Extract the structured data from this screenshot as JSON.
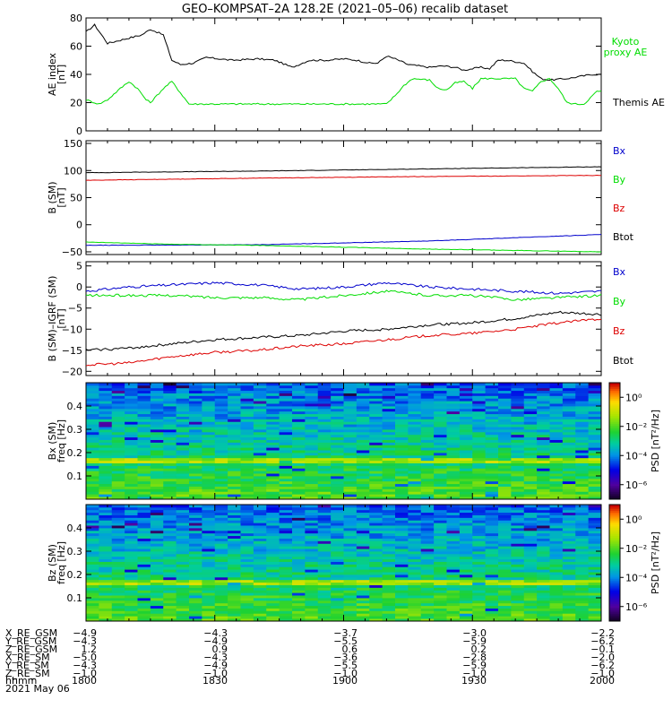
{
  "title": "GEO–KOMPSAT–2A 128.2E (2021–05–06) recalib dataset",
  "colors": {
    "black": "#000000",
    "green": "#00dd00",
    "red": "#dd0000",
    "blue": "#0000cc"
  },
  "chart_data": [
    {
      "type": "line",
      "ylabel": "AE index\n[nT]",
      "ylim": [
        0,
        80
      ],
      "yticks": [
        "0",
        "20",
        "40",
        "60",
        "80"
      ],
      "x_range": [
        "18:00",
        "20:00"
      ],
      "legend_placement": "right",
      "legend": [
        "Kyoto\nproxy AE",
        "Themis AE"
      ],
      "series": [
        {
          "name": "Themis AE",
          "color": "#000000",
          "points": [
            [
              0,
              70
            ],
            [
              2,
              75
            ],
            [
              5,
              62
            ],
            [
              9,
              65
            ],
            [
              13,
              68
            ],
            [
              15,
              72
            ],
            [
              18,
              68
            ],
            [
              20,
              50
            ],
            [
              22,
              47
            ],
            [
              25,
              48
            ],
            [
              28,
              52
            ],
            [
              34,
              50
            ],
            [
              40,
              51
            ],
            [
              44,
              50
            ],
            [
              48,
              45
            ],
            [
              52,
              50
            ],
            [
              56,
              50
            ],
            [
              60,
              51
            ],
            [
              63,
              50
            ],
            [
              66,
              48
            ],
            [
              68,
              48
            ],
            [
              70,
              53
            ],
            [
              72,
              51
            ],
            [
              75,
              47
            ],
            [
              80,
              45
            ],
            [
              83,
              46
            ],
            [
              86,
              45
            ],
            [
              88,
              43
            ],
            [
              90,
              44
            ],
            [
              92,
              45
            ],
            [
              94,
              44
            ],
            [
              96,
              50
            ],
            [
              98,
              50
            ],
            [
              100,
              49
            ],
            [
              102,
              48
            ],
            [
              104,
              42
            ],
            [
              106,
              37
            ],
            [
              108,
              36
            ],
            [
              112,
              37
            ],
            [
              116,
              39
            ],
            [
              118,
              40
            ],
            [
              120,
              40
            ]
          ]
        },
        {
          "name": "Kyoto proxy AE",
          "color": "#00dd00",
          "points": [
            [
              0,
              22
            ],
            [
              3,
              19
            ],
            [
              5,
              22
            ],
            [
              8,
              30
            ],
            [
              10,
              35
            ],
            [
              12,
              30
            ],
            [
              14,
              22
            ],
            [
              15,
              20
            ],
            [
              18,
              30
            ],
            [
              20,
              35
            ],
            [
              22,
              27
            ],
            [
              24,
              19
            ],
            [
              50,
              19
            ],
            [
              70,
              19
            ],
            [
              72,
              25
            ],
            [
              74,
              32
            ],
            [
              76,
              37
            ],
            [
              80,
              36
            ],
            [
              82,
              30
            ],
            [
              84,
              29
            ],
            [
              86,
              34
            ],
            [
              88,
              35
            ],
            [
              90,
              30
            ],
            [
              92,
              37
            ],
            [
              94,
              37
            ],
            [
              100,
              37
            ],
            [
              102,
              30
            ],
            [
              104,
              28
            ],
            [
              106,
              35
            ],
            [
              108,
              37
            ],
            [
              110,
              30
            ],
            [
              112,
              20
            ],
            [
              114,
              19
            ],
            [
              116,
              19
            ],
            [
              118,
              25
            ],
            [
              119,
              28
            ],
            [
              120,
              28
            ]
          ]
        }
      ]
    },
    {
      "type": "line",
      "ylabel": "B (SM)\n[nT]",
      "ylim": [
        -55,
        155
      ],
      "yticks": [
        "−50",
        "0",
        "50",
        "100",
        "150"
      ],
      "legend_placement": "right",
      "legend": [
        "Bx",
        "By",
        "Bz",
        "Btot"
      ],
      "series": [
        {
          "name": "Btot",
          "color": "#000000",
          "points": [
            [
              0,
              96
            ],
            [
              40,
              99
            ],
            [
              80,
              103
            ],
            [
              120,
              107
            ]
          ]
        },
        {
          "name": "Bz",
          "color": "#dd0000",
          "points": [
            [
              0,
              82
            ],
            [
              40,
              86
            ],
            [
              80,
              89
            ],
            [
              120,
              91
            ]
          ]
        },
        {
          "name": "Bx",
          "color": "#0000cc",
          "points": [
            [
              0,
              -38
            ],
            [
              40,
              -37
            ],
            [
              80,
              -30
            ],
            [
              120,
              -18
            ]
          ]
        },
        {
          "name": "By",
          "color": "#00dd00",
          "points": [
            [
              0,
              -32
            ],
            [
              20,
              -36
            ],
            [
              40,
              -38
            ],
            [
              80,
              -45
            ],
            [
              120,
              -50
            ]
          ]
        }
      ]
    },
    {
      "type": "line",
      "ylabel": "B (SM)–IGRF (SM)\n[nT]",
      "ylim": [
        -21,
        6
      ],
      "yticks": [
        "−20",
        "−15",
        "−10",
        "−5",
        "0",
        "5"
      ],
      "legend_placement": "right",
      "legend": [
        "Bx",
        "By",
        "Bz",
        "Btot"
      ],
      "series": [
        {
          "name": "Bx",
          "color": "#0000cc",
          "points": [
            [
              0,
              -1
            ],
            [
              10,
              0
            ],
            [
              20,
              0.5
            ],
            [
              30,
              1
            ],
            [
              40,
              0.5
            ],
            [
              50,
              -0.5
            ],
            [
              60,
              0
            ],
            [
              70,
              1
            ],
            [
              80,
              0
            ],
            [
              90,
              -0.5
            ],
            [
              100,
              -1
            ],
            [
              110,
              -1.5
            ],
            [
              120,
              -1
            ]
          ]
        },
        {
          "name": "By",
          "color": "#00dd00",
          "points": [
            [
              0,
              -2
            ],
            [
              10,
              -2
            ],
            [
              20,
              -2
            ],
            [
              30,
              -2.5
            ],
            [
              40,
              -2.5
            ],
            [
              50,
              -3
            ],
            [
              60,
              -2
            ],
            [
              70,
              -1
            ],
            [
              80,
              -2
            ],
            [
              90,
              -2
            ],
            [
              100,
              -3
            ],
            [
              110,
              -2.5
            ],
            [
              120,
              -2
            ]
          ]
        },
        {
          "name": "Btot",
          "color": "#000000",
          "points": [
            [
              0,
              -15
            ],
            [
              10,
              -14.5
            ],
            [
              20,
              -13.5
            ],
            [
              30,
              -12.5
            ],
            [
              40,
              -12
            ],
            [
              50,
              -11.5
            ],
            [
              60,
              -10.5
            ],
            [
              70,
              -10
            ],
            [
              80,
              -9
            ],
            [
              90,
              -8.5
            ],
            [
              100,
              -7.5
            ],
            [
              110,
              -6
            ],
            [
              120,
              -6.5
            ]
          ]
        },
        {
          "name": "Bz",
          "color": "#dd0000",
          "points": [
            [
              0,
              -18.5
            ],
            [
              10,
              -18
            ],
            [
              20,
              -16.5
            ],
            [
              30,
              -15.5
            ],
            [
              40,
              -15
            ],
            [
              50,
              -14
            ],
            [
              60,
              -13.5
            ],
            [
              70,
              -12.5
            ],
            [
              80,
              -11.5
            ],
            [
              90,
              -11
            ],
            [
              100,
              -10
            ],
            [
              110,
              -8.5
            ],
            [
              120,
              -7.5
            ]
          ]
        }
      ]
    },
    {
      "type": "heatmap",
      "ylabel": "Bx (SM)\nfreq [Hz]",
      "ylim": [
        0,
        0.5
      ],
      "yticks": [
        "0.1",
        "0.2",
        "0.3",
        "0.4"
      ],
      "zlabel": "PSD [nT²/Hz]",
      "colorbar_ticks": [
        "10⁰",
        "10⁻²",
        "10⁻⁴",
        "10⁻⁶"
      ],
      "colorbar_range_exponent": [
        -7,
        1
      ]
    },
    {
      "type": "heatmap",
      "ylabel": "Bz (SM)\nfreq [Hz]",
      "ylim": [
        0,
        0.5
      ],
      "yticks": [
        "0.1",
        "0.2",
        "0.3",
        "0.4"
      ],
      "zlabel": "PSD [nT²/Hz]",
      "colorbar_ticks": [
        "10⁰",
        "10⁻²",
        "10⁻⁴",
        "10⁻⁶"
      ],
      "colorbar_range_exponent": [
        -7,
        1
      ]
    }
  ],
  "orbit_table": {
    "row_labels": [
      "X_RE_GSM",
      "Y_RE_GSM",
      "Z_RE_GSM",
      "X_RE_SM",
      "Y_RE_SM",
      "Z_RE_SM",
      "hhmm"
    ],
    "columns": [
      [
        "−4.9",
        "−4.3",
        "1.2",
        "−5.0",
        "−4.3",
        "−1.0",
        "1800"
      ],
      [
        "−4.3",
        "−4.9",
        "0.9",
        "−4.3",
        "−4.9",
        "−1.0",
        "1830"
      ],
      [
        "−3.7",
        "−5.5",
        "0.6",
        "−3.6",
        "−5.5",
        "−1.0",
        "1900"
      ],
      [
        "−3.0",
        "−5.9",
        "0.2",
        "−2.8",
        "−5.9",
        "−1.0",
        "1930"
      ],
      [
        "−2.2",
        "−6.2",
        "−0.1",
        "−2.0",
        "−6.2",
        "−1.0",
        "2000"
      ]
    ],
    "date": "2021 May 06"
  }
}
